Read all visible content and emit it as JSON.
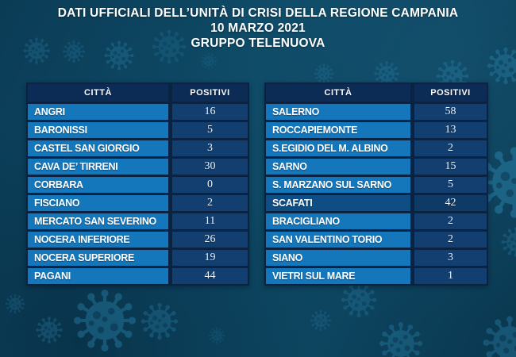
{
  "title": {
    "line1": "DATI UFFICIALI DELL’UNITÀ DI CRISI DELLA REGIONE CAMPANIA",
    "line2": "10 MARZO 2021",
    "line3": "GRUPPO TELENUOVA"
  },
  "chart_data": {
    "type": "table",
    "title": "DATI UFFICIALI DELL’UNITÀ DI CRISI DELLA REGIONE CAMPANIA",
    "subtitle": "10 MARZO 2021",
    "attribution": "GRUPPO TELENUOVA",
    "columns": [
      "CITTÀ",
      "POSITIVI"
    ],
    "left_table": {
      "headers": {
        "city": "CITTÀ",
        "positives": "POSITIVI"
      },
      "rows": [
        {
          "city": "ANGRI",
          "positives": 16
        },
        {
          "city": "BARONISSI",
          "positives": 5
        },
        {
          "city": "CASTEL SAN GIORGIO",
          "positives": 3
        },
        {
          "city": "CAVA DE’ TIRRENI",
          "positives": 30
        },
        {
          "city": "CORBARA",
          "positives": 0
        },
        {
          "city": "FISCIANO",
          "positives": 2
        },
        {
          "city": "MERCATO SAN SEVERINO",
          "positives": 11
        },
        {
          "city": "NOCERA INFERIORE",
          "positives": 26
        },
        {
          "city": "NOCERA SUPERIORE",
          "positives": 19
        },
        {
          "city": "PAGANI",
          "positives": 44
        }
      ]
    },
    "right_table": {
      "headers": {
        "city": "CITTÀ",
        "positives": "POSITIVI"
      },
      "rows": [
        {
          "city": "SALERNO",
          "positives": 58
        },
        {
          "city": "ROCCAPIEMONTE",
          "positives": 13
        },
        {
          "city": "S.EGIDIO DEL M. ALBINO",
          "positives": 2
        },
        {
          "city": "SARNO",
          "positives": 15
        },
        {
          "city": "S. MARZANO SUL SARNO",
          "positives": 5
        },
        {
          "city": "SCAFATI",
          "positives": 42,
          "highlight": true
        },
        {
          "city": "BRACIGLIANO",
          "positives": 2
        },
        {
          "city": "SAN VALENTINO TORIO",
          "positives": 2
        },
        {
          "city": "SIANO",
          "positives": 3
        },
        {
          "city": "VIETRI SUL MARE",
          "positives": 1
        }
      ]
    }
  },
  "colors": {
    "background": "#0d455f",
    "header_cell": "#0c2b55",
    "city_cell": "#1577bb",
    "value_cell": "#123f70",
    "highlight_city_cell": "#0f4e84",
    "highlight_value_cell": "#0f3a66",
    "cell_gap": "#0a2342",
    "text": "#ffffff",
    "virus_decoration": "#2a85ad"
  }
}
